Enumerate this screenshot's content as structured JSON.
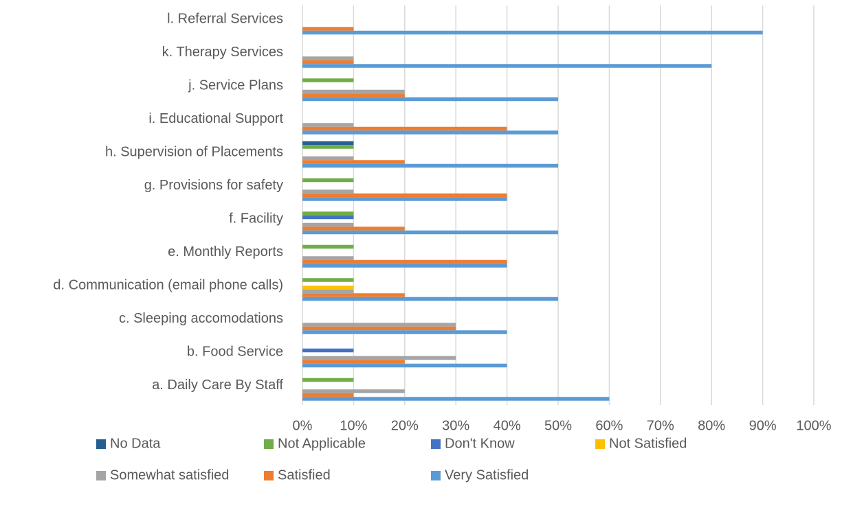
{
  "chart_data": {
    "type": "hbar",
    "categories": [
      "a. Daily Care By Staff",
      "b. Food Service",
      "c. Sleeping accomodations",
      "d. Communication (email phone calls)",
      "e. Monthly Reports",
      "f.  Facility",
      "g. Provisions for safety",
      "h. Supervision of Placements",
      "i.  Educational Support",
      "j. Service Plans",
      "k. Therapy Services",
      "l. Referral Services"
    ],
    "series": [
      {
        "name": "No Data",
        "color": "#255e91",
        "values": [
          0,
          0,
          0,
          0,
          0,
          0,
          0,
          10,
          0,
          0,
          0,
          0
        ]
      },
      {
        "name": "Not Applicable",
        "color": "#70ad47",
        "values": [
          10,
          0,
          0,
          10,
          10,
          10,
          10,
          10,
          0,
          10,
          0,
          0
        ]
      },
      {
        "name": "Don't Know",
        "color": "#4472c4",
        "values": [
          0,
          10,
          0,
          0,
          0,
          10,
          0,
          0,
          0,
          0,
          0,
          0
        ]
      },
      {
        "name": "Not Satisfied",
        "color": "#ffc000",
        "values": [
          0,
          0,
          0,
          10,
          0,
          0,
          0,
          0,
          0,
          0,
          0,
          0
        ]
      },
      {
        "name": "Somewhat satisfied",
        "color": "#a5a5a5",
        "values": [
          20,
          30,
          30,
          10,
          10,
          10,
          10,
          10,
          10,
          20,
          10,
          0
        ]
      },
      {
        "name": "Satisfied",
        "color": "#ed7d31",
        "values": [
          10,
          20,
          30,
          20,
          40,
          20,
          40,
          20,
          40,
          20,
          10,
          10
        ]
      },
      {
        "name": "Very Satisfied",
        "color": "#5b9bd5",
        "values": [
          60,
          40,
          40,
          50,
          40,
          50,
          40,
          50,
          50,
          50,
          80,
          90
        ]
      }
    ],
    "xlim": [
      0,
      100
    ],
    "xticks": [
      {
        "value": 0,
        "label": "0%"
      },
      {
        "value": 10,
        "label": "10%"
      },
      {
        "value": 20,
        "label": "20%"
      },
      {
        "value": 30,
        "label": "30%"
      },
      {
        "value": 40,
        "label": "40%"
      },
      {
        "value": 50,
        "label": "50%"
      },
      {
        "value": 60,
        "label": "60%"
      },
      {
        "value": 70,
        "label": "70%"
      },
      {
        "value": 80,
        "label": "80%"
      },
      {
        "value": 90,
        "label": "90%"
      },
      {
        "value": 100,
        "label": "100%"
      }
    ],
    "grid": true,
    "legend": "bottom"
  }
}
